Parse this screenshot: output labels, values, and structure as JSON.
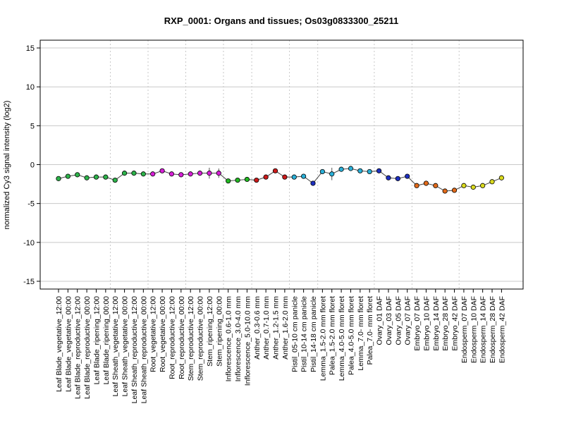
{
  "chart_data": {
    "type": "line",
    "title": "RXP_0001: Organs and tissues; Os03g0833300_25211",
    "xlabel": "",
    "ylabel": "normalized Cy3 signal intensity (log2)",
    "ylim": [
      -16,
      16
    ],
    "yticks": [
      -15,
      -10,
      -5,
      0,
      5,
      10,
      15
    ],
    "grid": "horizontal lines at y ticks; dotted vertical lines between tissue groups",
    "categories": [
      "Leaf Blade_vegetative_12:00",
      "Leaf Blade_vegetative_00:00",
      "Leaf Blade_reproductive_12:00",
      "Leaf Blade_reproductive_00:00",
      "Leaf Blade_ripening_12:00",
      "Leaf Blade_ripening_00:00",
      "Leaf Sheath_vegetative_12:00",
      "Leaf Sheath_vegetative_00:00",
      "Leaf Sheath_reproductive_12:00",
      "Leaf Sheath_reproductive_00:00",
      "Root_vegetative_12:00",
      "Root_vegetative_00:00",
      "Root_reproductive_12:00",
      "Root_reproductive_00:00",
      "Stem_reproductive_12:00",
      "Stem_reproductive_00:00",
      "Stem_ripening_12:00",
      "Stem_ripening_00:00",
      "Inflorescence_0.6-1.0 mm",
      "Inflorescence_3.0-4.0 mm",
      "Inflorescence_5.0-10.0 mm",
      "Anther_0.3-0.6 mm",
      "Anther_0.7-1.0 mm",
      "Anther_1.2-1.5 mm",
      "Anther_1.6-2.0 mm",
      "Pistil_05-10 cm panicle",
      "Pistil_10-14 cm panicle",
      "Pistil_14-18 cm panicle",
      "Lemma_1.5-2.0 mm floret",
      "Palea_1.5-2.0 mm floret",
      "Lemma_4.0-5.0 mm floret",
      "Palea_4.0-5.0 mm floret",
      "Lemma_7.0- mm floret",
      "Palea_7.0- mm floret",
      "Ovary_01 DAF",
      "Ovary_03 DAF",
      "Ovary_05 DAF",
      "Ovary_07 DAF",
      "Embryo_07 DAF",
      "Embryo_10 DAF",
      "Embryo_14 DAF",
      "Embryo_28 DAF",
      "Embryo_42 DAF",
      "Endosperm_07 DAF",
      "Endosperm_10 DAF",
      "Endosperm_14 DAF",
      "Endosperm_28 DAF",
      "Endosperm_42 DAF"
    ],
    "series": [
      {
        "values": [
          -1.8,
          -1.5,
          -1.3,
          -1.7,
          -1.6,
          -1.6,
          -2.0,
          -1.1,
          -1.1,
          -1.2,
          -1.2,
          -0.8,
          -1.2,
          -1.3,
          -1.2,
          -1.1,
          -1.1,
          -1.1,
          -2.1,
          -2.0,
          -1.9,
          -2.0,
          -1.6,
          -0.8,
          -1.6,
          -1.6,
          -1.5,
          -2.4,
          -0.9,
          -1.2,
          -0.6,
          -0.5,
          -0.8,
          -0.9,
          -0.8,
          -1.7,
          -1.8,
          -1.5,
          -2.7,
          -2.4,
          -2.7,
          -3.4,
          -3.3,
          -2.7,
          -2.9,
          -2.7,
          -2.2,
          -1.7
        ],
        "errors": [
          0.1,
          0.1,
          0.1,
          0.1,
          0.1,
          0.1,
          0.1,
          0.3,
          0.3,
          0.1,
          0.1,
          0.1,
          0.1,
          0.1,
          0.2,
          0.1,
          0.7,
          0.6,
          0.1,
          0.1,
          0.1,
          0.1,
          0.1,
          0.1,
          0.1,
          0.1,
          0.1,
          0.1,
          0.2,
          0.8,
          0.2,
          0.1,
          0.1,
          0.1,
          0.1,
          0.1,
          0.1,
          0.1,
          0.1,
          0.1,
          0.3,
          0.1,
          0.1,
          0.1,
          0.1,
          0.1,
          0.1,
          0.1
        ],
        "colors": [
          "#2db34a",
          "#2db34a",
          "#2db34a",
          "#2db34a",
          "#2db34a",
          "#2db34a",
          "#2db34a",
          "#2db34a",
          "#2db34a",
          "#2db34a",
          "#d61fd6",
          "#d61fd6",
          "#d61fd6",
          "#d61fd6",
          "#d61fd6",
          "#d61fd6",
          "#d61fd6",
          "#d61fd6",
          "#22b822",
          "#22b822",
          "#22b822",
          "#cc1a1a",
          "#cc1a1a",
          "#cc1a1a",
          "#cc1a1a",
          "#2ab0d8",
          "#2ab0d8",
          "#1d2fc0",
          "#2ab0d8",
          "#2ab0d8",
          "#2ab0d8",
          "#2ab0d8",
          "#2ab0d8",
          "#2ab0d8",
          "#1d2fc0",
          "#1d2fc0",
          "#1d2fc0",
          "#1d2fc0",
          "#e26a1a",
          "#e26a1a",
          "#e26a1a",
          "#e26a1a",
          "#e26a1a",
          "#dada1e",
          "#dada1e",
          "#dada1e",
          "#dada1e",
          "#dada1e"
        ]
      }
    ],
    "group_separators_after_index": [
      5,
      9,
      13,
      17,
      20,
      24,
      27,
      33,
      37,
      42
    ]
  }
}
